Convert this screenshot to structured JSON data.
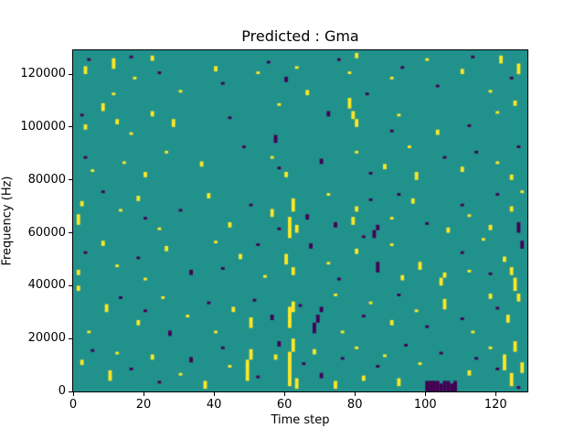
{
  "chart_data": {
    "type": "heatmap",
    "title": "Predicted : Gma",
    "xlabel": "Time step",
    "ylabel": "Frequency (Hz)",
    "xlim": [
      0,
      129
    ],
    "ylim": [
      0,
      129000
    ],
    "x_ticks": [
      0,
      20,
      40,
      60,
      80,
      100,
      120
    ],
    "y_ticks": [
      0,
      20000,
      40000,
      60000,
      80000,
      100000,
      120000
    ],
    "grid": false,
    "freq_bin_hz": 1000,
    "legend": "none",
    "colors": {
      "background": "#21918c",
      "yellow": "#fde725",
      "purple": "#440154",
      "figure_background": "#ffffff",
      "axis": "#000000"
    },
    "cells_format": "[time_step, freq_bin_bottom_in_1000Hz_units, optional_height_in_bins]",
    "yellow_cells": [
      [
        3,
        120,
        3
      ],
      [
        11,
        122,
        4
      ],
      [
        11,
        112
      ],
      [
        17,
        118
      ],
      [
        22,
        125,
        2
      ],
      [
        30,
        113
      ],
      [
        40,
        121,
        2
      ],
      [
        52,
        120
      ],
      [
        63,
        122
      ],
      [
        66,
        112,
        2
      ],
      [
        78,
        120
      ],
      [
        80,
        126,
        2
      ],
      [
        90,
        118
      ],
      [
        100,
        125
      ],
      [
        110,
        120,
        2
      ],
      [
        118,
        113
      ],
      [
        121,
        124,
        3
      ],
      [
        126,
        120,
        4
      ],
      [
        3,
        99,
        2
      ],
      [
        8,
        106,
        3
      ],
      [
        12,
        101,
        2
      ],
      [
        16,
        97
      ],
      [
        22,
        104,
        2
      ],
      [
        28,
        100,
        3
      ],
      [
        58,
        108
      ],
      [
        78,
        107,
        4
      ],
      [
        79,
        103,
        3
      ],
      [
        80,
        100,
        3
      ],
      [
        92,
        104
      ],
      [
        103,
        97,
        2
      ],
      [
        120,
        105
      ],
      [
        125,
        108,
        2
      ],
      [
        5,
        83
      ],
      [
        14,
        86
      ],
      [
        20,
        81,
        2
      ],
      [
        26,
        90
      ],
      [
        36,
        85,
        2
      ],
      [
        56,
        88
      ],
      [
        60,
        81,
        2
      ],
      [
        80,
        90
      ],
      [
        88,
        84,
        2
      ],
      [
        95,
        92
      ],
      [
        97,
        80,
        3
      ],
      [
        110,
        83,
        2
      ],
      [
        120,
        86
      ],
      [
        124,
        80,
        2
      ],
      [
        1,
        63,
        4
      ],
      [
        2,
        70,
        2
      ],
      [
        13,
        68
      ],
      [
        18,
        72,
        2
      ],
      [
        24,
        61
      ],
      [
        38,
        73,
        2
      ],
      [
        44,
        62,
        2
      ],
      [
        56,
        66,
        3
      ],
      [
        61,
        58,
        8
      ],
      [
        62,
        68,
        5
      ],
      [
        63,
        60,
        3
      ],
      [
        72,
        74
      ],
      [
        79,
        63,
        3
      ],
      [
        80,
        68,
        2
      ],
      [
        90,
        65
      ],
      [
        96,
        71,
        2
      ],
      [
        106,
        60,
        2
      ],
      [
        112,
        66
      ],
      [
        118,
        61,
        2
      ],
      [
        124,
        68,
        2
      ],
      [
        127,
        75
      ],
      [
        1,
        44,
        2
      ],
      [
        8,
        55,
        2
      ],
      [
        12,
        47
      ],
      [
        20,
        42
      ],
      [
        26,
        53,
        2
      ],
      [
        40,
        56
      ],
      [
        47,
        50,
        2
      ],
      [
        54,
        43
      ],
      [
        60,
        48,
        4
      ],
      [
        62,
        44,
        3
      ],
      [
        72,
        48
      ],
      [
        80,
        52,
        2
      ],
      [
        90,
        55
      ],
      [
        93,
        42,
        2
      ],
      [
        98,
        46,
        3
      ],
      [
        104,
        40,
        3
      ],
      [
        105,
        43,
        2
      ],
      [
        112,
        45
      ],
      [
        116,
        57
      ],
      [
        122,
        49,
        2
      ],
      [
        124,
        44,
        3
      ],
      [
        125,
        38,
        5
      ],
      [
        1,
        38,
        2
      ],
      [
        4,
        22
      ],
      [
        9,
        30,
        3
      ],
      [
        18,
        25,
        2
      ],
      [
        25,
        35
      ],
      [
        32,
        28
      ],
      [
        40,
        22
      ],
      [
        45,
        30,
        2
      ],
      [
        50,
        24,
        4
      ],
      [
        61,
        24,
        8
      ],
      [
        62,
        30,
        4
      ],
      [
        74,
        36
      ],
      [
        76,
        22
      ],
      [
        84,
        33
      ],
      [
        90,
        25,
        2
      ],
      [
        97,
        30
      ],
      [
        105,
        31,
        4
      ],
      [
        113,
        22
      ],
      [
        118,
        35,
        2
      ],
      [
        123,
        26,
        3
      ],
      [
        126,
        34,
        3
      ],
      [
        2,
        10,
        2
      ],
      [
        10,
        4,
        4
      ],
      [
        12,
        14
      ],
      [
        22,
        12,
        2
      ],
      [
        30,
        6
      ],
      [
        37,
        1,
        3
      ],
      [
        44,
        9
      ],
      [
        49,
        4,
        8
      ],
      [
        50,
        12,
        4
      ],
      [
        57,
        12,
        2
      ],
      [
        61,
        2,
        13
      ],
      [
        62,
        15,
        5
      ],
      [
        63,
        1,
        4
      ],
      [
        68,
        14,
        2
      ],
      [
        74,
        1,
        3
      ],
      [
        80,
        16
      ],
      [
        82,
        4,
        2
      ],
      [
        88,
        13
      ],
      [
        92,
        2,
        3
      ],
      [
        98,
        10
      ],
      [
        112,
        6,
        2
      ],
      [
        118,
        16
      ],
      [
        122,
        8,
        6
      ],
      [
        124,
        2,
        5
      ],
      [
        125,
        15,
        4
      ],
      [
        127,
        7,
        4
      ]
    ],
    "purple_cells": [
      [
        4,
        125
      ],
      [
        16,
        126
      ],
      [
        24,
        120
      ],
      [
        42,
        116
      ],
      [
        55,
        124
      ],
      [
        60,
        117,
        2
      ],
      [
        75,
        125
      ],
      [
        83,
        112
      ],
      [
        93,
        122
      ],
      [
        103,
        115
      ],
      [
        113,
        126
      ],
      [
        124,
        118
      ],
      [
        2,
        104
      ],
      [
        44,
        103
      ],
      [
        57,
        94,
        3
      ],
      [
        72,
        104,
        2
      ],
      [
        90,
        98
      ],
      [
        112,
        100
      ],
      [
        3,
        88
      ],
      [
        48,
        92
      ],
      [
        58,
        84
      ],
      [
        70,
        86,
        2
      ],
      [
        84,
        82
      ],
      [
        105,
        88
      ],
      [
        114,
        90
      ],
      [
        126,
        92
      ],
      [
        8,
        75
      ],
      [
        20,
        65
      ],
      [
        30,
        68
      ],
      [
        50,
        70
      ],
      [
        58,
        61
      ],
      [
        66,
        65,
        2
      ],
      [
        74,
        62,
        2
      ],
      [
        84,
        72
      ],
      [
        85,
        58,
        3
      ],
      [
        86,
        61,
        2
      ],
      [
        92,
        74
      ],
      [
        100,
        63
      ],
      [
        110,
        70
      ],
      [
        120,
        74
      ],
      [
        126,
        60,
        4
      ],
      [
        3,
        52
      ],
      [
        18,
        50
      ],
      [
        33,
        44,
        2
      ],
      [
        42,
        46
      ],
      [
        52,
        55
      ],
      [
        67,
        54,
        2
      ],
      [
        75,
        42
      ],
      [
        82,
        58
      ],
      [
        86,
        45,
        4
      ],
      [
        110,
        52
      ],
      [
        118,
        44
      ],
      [
        127,
        54,
        3
      ],
      [
        13,
        35
      ],
      [
        20,
        30
      ],
      [
        27,
        21,
        2
      ],
      [
        38,
        33
      ],
      [
        51,
        34
      ],
      [
        56,
        27,
        2
      ],
      [
        64,
        32
      ],
      [
        68,
        22,
        4
      ],
      [
        69,
        26,
        3
      ],
      [
        70,
        30,
        2
      ],
      [
        82,
        28
      ],
      [
        92,
        36
      ],
      [
        100,
        24
      ],
      [
        110,
        27
      ],
      [
        120,
        31
      ],
      [
        5,
        15
      ],
      [
        16,
        8
      ],
      [
        24,
        3
      ],
      [
        33,
        11,
        2
      ],
      [
        42,
        16
      ],
      [
        52,
        5
      ],
      [
        58,
        17,
        2
      ],
      [
        65,
        10
      ],
      [
        70,
        5,
        2
      ],
      [
        76,
        12
      ],
      [
        86,
        9
      ],
      [
        94,
        17
      ],
      [
        100,
        0,
        4
      ],
      [
        101,
        0,
        4
      ],
      [
        102,
        0,
        4
      ],
      [
        103,
        0,
        4
      ],
      [
        104,
        0,
        3
      ],
      [
        105,
        0,
        4
      ],
      [
        106,
        0,
        4
      ],
      [
        107,
        0,
        3
      ],
      [
        108,
        0,
        4
      ],
      [
        104,
        14
      ],
      [
        114,
        12
      ],
      [
        120,
        8
      ],
      [
        126,
        1
      ]
    ]
  }
}
